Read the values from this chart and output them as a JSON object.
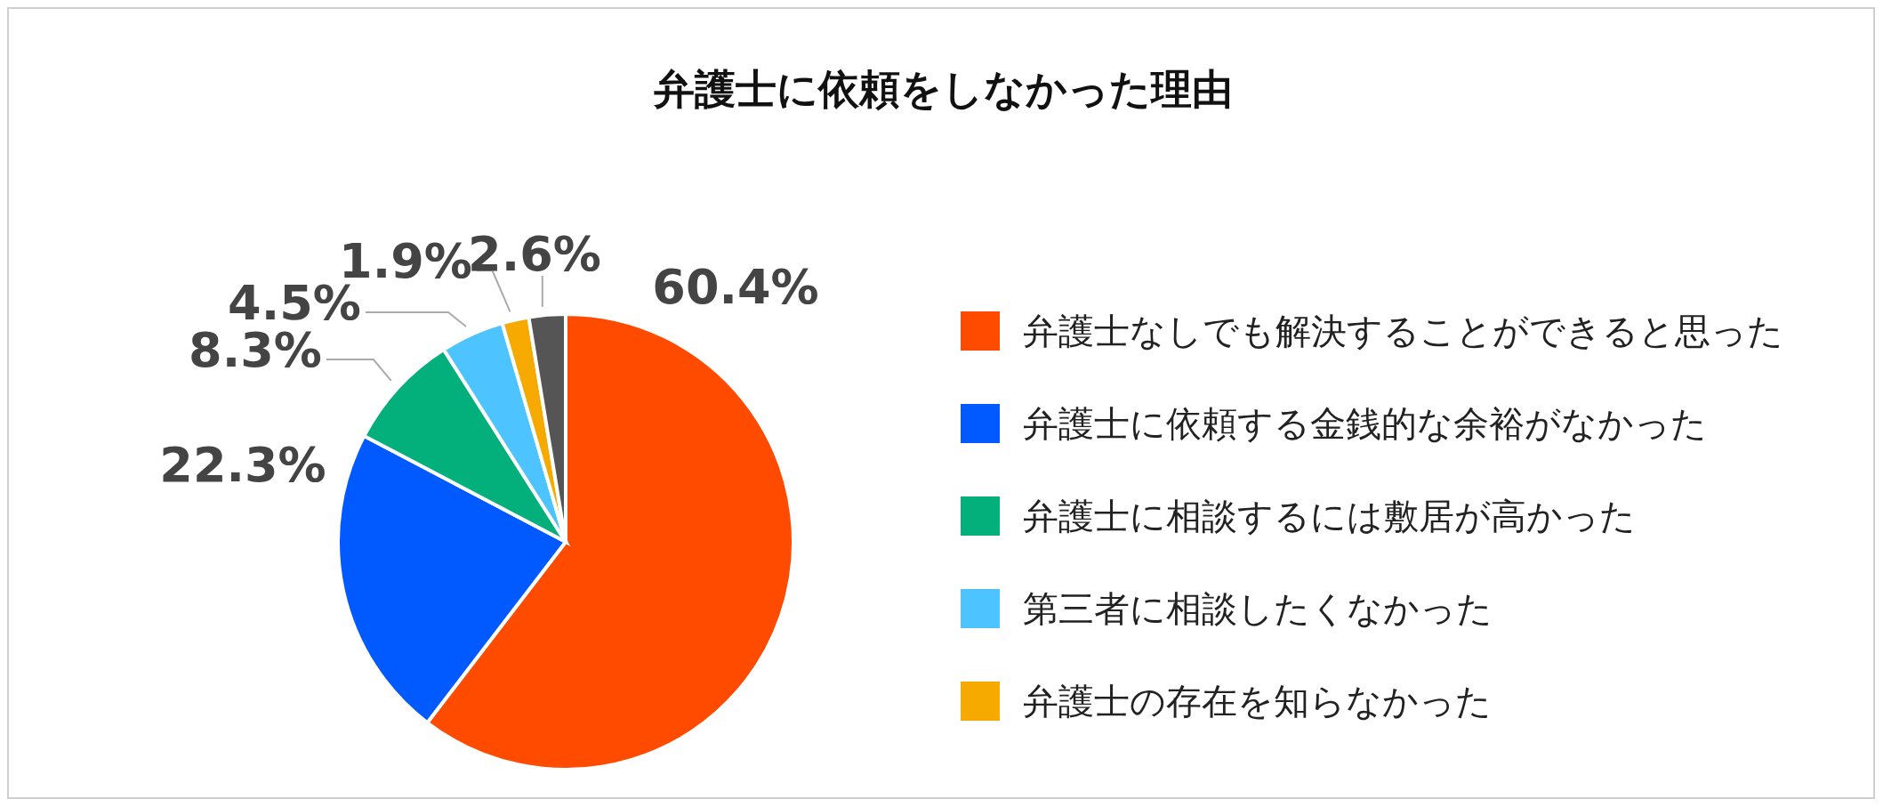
{
  "chart_data": {
    "type": "pie",
    "title": "弁護士に依頼をしなかった理由",
    "categories": [
      "弁護士なしでも解決することができると思った",
      "弁護士に依頼する金銭的な余裕がなかった",
      "弁護士に相談するには敷居が高かった",
      "第三者に相談したくなかった",
      "弁護士の存在を知らなかった",
      null
    ],
    "values": [
      60.4,
      22.3,
      8.3,
      4.5,
      1.9,
      2.6
    ],
    "colors": [
      "#ff4b00",
      "#005aff",
      "#03af7a",
      "#4dc4ff",
      "#f6aa00",
      "#555555"
    ],
    "value_labels": [
      "60.4%",
      "22.3%",
      "8.3%",
      "4.5%",
      "1.9%",
      "2.6%"
    ],
    "legend": "right"
  }
}
